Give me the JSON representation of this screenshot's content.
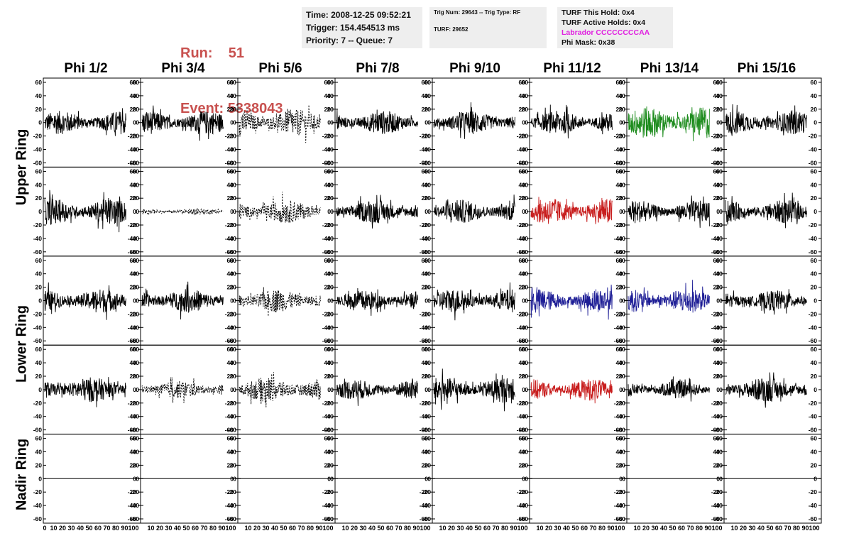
{
  "header": {
    "run_label": "Run:",
    "run_value": "51",
    "event_label": "Event:",
    "event_value": "5338043",
    "info": {
      "time": "Time: 2008-12-25 09:52:21",
      "trigger": "Trigger: 154.454513 ms",
      "priority": "Priority: 7 -- Queue: 7"
    },
    "trig": {
      "trig_line": "Trig Num: 29643 -- Trig Type: RF",
      "turf_line": "TURF: 29652"
    },
    "turf": {
      "this_hold": "TURF This Hold: 0x4",
      "active_holds": "TURF Active Holds: 0x4",
      "labrador": "Labrador CCCCCCCCAA",
      "phi_mask": "Phi Mask: 0x38"
    }
  },
  "columns": [
    "Phi 1/2",
    "Phi 3/4",
    "Phi 5/6",
    "Phi 7/8",
    "Phi 9/10",
    "Phi 11/12",
    "Phi 13/14",
    "Phi 15/16"
  ],
  "rings": [
    "Upper Ring",
    "Lower Ring",
    "Nadir Ring"
  ],
  "colors": {
    "run_text": "#c8514f",
    "labrador_text": "#e020e0",
    "trace_default": "#000000",
    "trace_green": "#1e8c1e",
    "trace_red": "#c81e1e",
    "trace_blue": "#1e1e96"
  },
  "chart_data": {
    "type": "line",
    "description_rows": 5,
    "description_cols": 8,
    "x_range": [
      0,
      100
    ],
    "y_range": [
      -60,
      60
    ],
    "y_ticks": [
      -60,
      -40,
      -20,
      0,
      20,
      40,
      60
    ],
    "x_ticks": [
      0,
      10,
      20,
      30,
      40,
      50,
      60,
      70,
      80,
      90,
      100
    ],
    "bottom_axis_labels": [
      "0",
      "10",
      "20",
      "30",
      "40",
      "50",
      "60",
      "70",
      "80",
      "90",
      "100"
    ],
    "panels": [
      [
        {
          "style": "solid",
          "color": "black",
          "amp": 16
        },
        {
          "style": "solid",
          "color": "black",
          "amp": 16
        },
        {
          "style": "dashed",
          "color": "black",
          "amp": 18
        },
        {
          "style": "solid",
          "color": "black",
          "amp": 16
        },
        {
          "style": "solid",
          "color": "black",
          "amp": 16
        },
        {
          "style": "solid",
          "color": "black",
          "amp": 16
        },
        {
          "style": "solid",
          "color": "green",
          "amp": 22
        },
        {
          "style": "solid",
          "color": "black",
          "amp": 16
        }
      ],
      [
        {
          "style": "solid",
          "color": "black",
          "amp": 18
        },
        {
          "style": "dashed",
          "color": "black",
          "amp": 4
        },
        {
          "style": "dashed",
          "color": "black",
          "amp": 16
        },
        {
          "style": "solid",
          "color": "black",
          "amp": 16
        },
        {
          "style": "solid",
          "color": "black",
          "amp": 16
        },
        {
          "style": "solid",
          "color": "red",
          "amp": 18
        },
        {
          "style": "solid",
          "color": "black",
          "amp": 15
        },
        {
          "style": "solid",
          "color": "black",
          "amp": 16
        }
      ],
      [
        {
          "style": "solid",
          "color": "black",
          "amp": 16
        },
        {
          "style": "solid",
          "color": "black",
          "amp": 16
        },
        {
          "style": "dashed",
          "color": "black",
          "amp": 16
        },
        {
          "style": "solid",
          "color": "black",
          "amp": 14
        },
        {
          "style": "solid",
          "color": "black",
          "amp": 16
        },
        {
          "style": "solid",
          "color": "blue",
          "amp": 16
        },
        {
          "style": "solid",
          "color": "blue",
          "amp": 17
        },
        {
          "style": "solid",
          "color": "black",
          "amp": 14
        }
      ],
      [
        {
          "style": "solid",
          "color": "black",
          "amp": 17
        },
        {
          "style": "dashed",
          "color": "black",
          "amp": 12
        },
        {
          "style": "dashed",
          "color": "black",
          "amp": 17
        },
        {
          "style": "solid",
          "color": "black",
          "amp": 14
        },
        {
          "style": "solid",
          "color": "black",
          "amp": 17
        },
        {
          "style": "solid",
          "color": "red",
          "amp": 15
        },
        {
          "style": "solid",
          "color": "black",
          "amp": 12
        },
        {
          "style": "solid",
          "color": "black",
          "amp": 17
        }
      ],
      [
        {
          "style": "flat",
          "color": "black",
          "amp": 0
        },
        {
          "style": "flat",
          "color": "black",
          "amp": 0
        },
        {
          "style": "flat",
          "color": "black",
          "amp": 0
        },
        {
          "style": "flat",
          "color": "black",
          "amp": 0
        },
        {
          "style": "flat",
          "color": "black",
          "amp": 0
        },
        {
          "style": "flat",
          "color": "black",
          "amp": 0
        },
        {
          "style": "flat",
          "color": "black",
          "amp": 0
        },
        {
          "style": "flat",
          "color": "black",
          "amp": 0
        }
      ]
    ]
  }
}
